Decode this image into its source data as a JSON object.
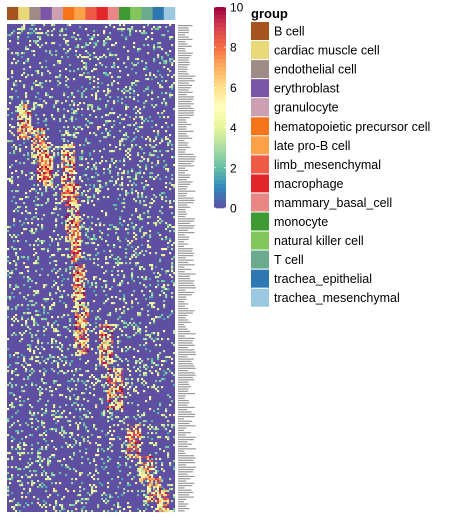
{
  "chart_data": {
    "type": "heatmap",
    "color_scale": {
      "min": 0,
      "max": 10,
      "ticks": [
        0,
        2,
        4,
        6,
        8,
        10
      ],
      "colors": [
        "#5E4FA2",
        "#3288BD",
        "#66C2A5",
        "#ABDDA4",
        "#E6F598",
        "#FFFFBF",
        "#FEE08B",
        "#FDAE61",
        "#F46D43",
        "#D53E4F",
        "#9E0142"
      ]
    },
    "legend": {
      "title": "group",
      "placement": "right",
      "entries": [
        {
          "label": "B cell",
          "color": "#A6531F"
        },
        {
          "label": "cardiac muscle cell",
          "color": "#E8D879"
        },
        {
          "label": "endothelial cell",
          "color": "#9F8B86"
        },
        {
          "label": "erythroblast",
          "color": "#7B55A6"
        },
        {
          "label": "granulocyte",
          "color": "#CC9FB1"
        },
        {
          "label": "hematopoietic precursor cell",
          "color": "#F6751B"
        },
        {
          "label": "late pro-B cell",
          "color": "#FDA248"
        },
        {
          "label": "limb_mesenchymal",
          "color": "#EE5A45"
        },
        {
          "label": "macrophage",
          "color": "#E2262A"
        },
        {
          "label": "mammary_basal_cell",
          "color": "#E98786"
        },
        {
          "label": "monocyte",
          "color": "#3D9A33"
        },
        {
          "label": "natural killer cell",
          "color": "#82C65C"
        },
        {
          "label": "T cell",
          "color": "#6AAB90"
        },
        {
          "label": "trachea_epithelial",
          "color": "#2D78B3"
        },
        {
          "label": "trachea_mesenchymal",
          "color": "#9DC8E1"
        }
      ]
    },
    "top_annotation_groups": [
      "B cell",
      "cardiac muscle cell",
      "endothelial cell",
      "erythroblast",
      "granulocyte",
      "hematopoietic precursor cell",
      "late pro-B cell",
      "limb_mesenchymal",
      "macrophage",
      "mammary_basal_cell",
      "monocyte",
      "natural killer cell",
      "T cell",
      "trachea_epithelial",
      "trachea_mesenchymal"
    ],
    "row_labels_legible": false
  }
}
